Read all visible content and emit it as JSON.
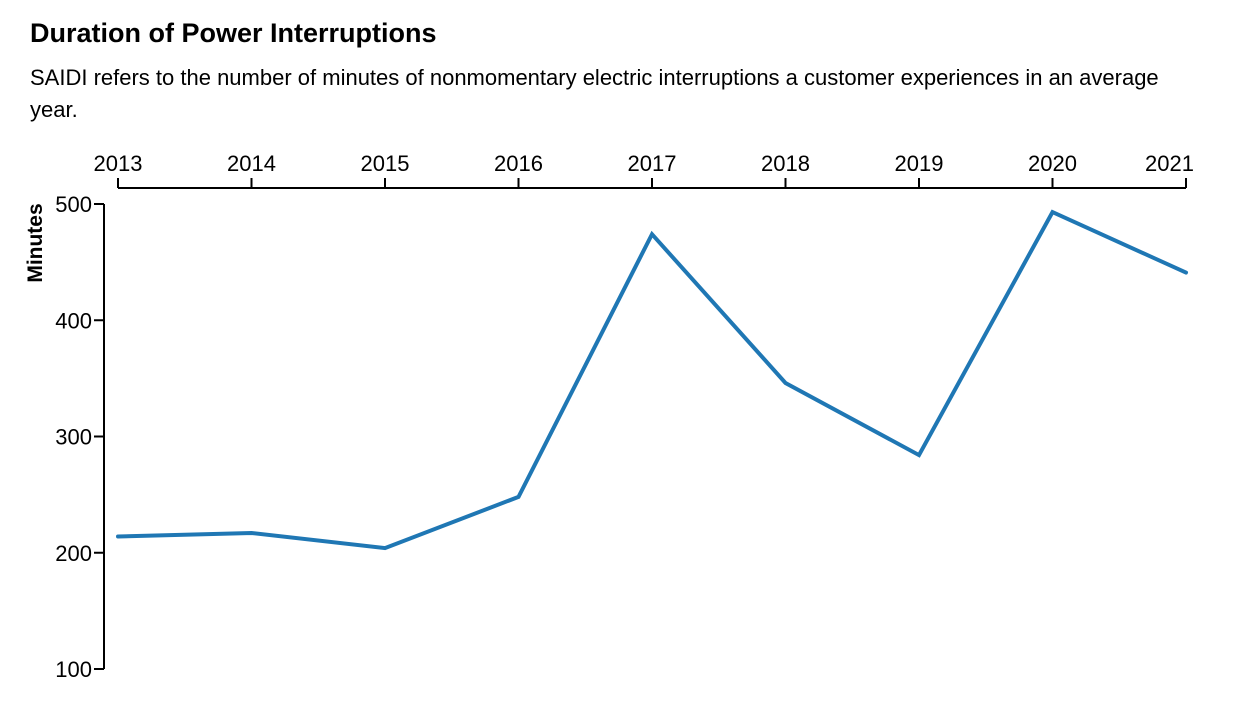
{
  "chart_data": {
    "type": "line",
    "title": "Duration of Power Interruptions",
    "subtitle": "SAIDI refers to the number of minutes of nonmomentary electric interruptions a customer experiences in an average year.",
    "xlabel": "",
    "ylabel": "Minutes",
    "x": [
      "2013",
      "2014",
      "2015",
      "2016",
      "2017",
      "2018",
      "2019",
      "2020",
      "2021"
    ],
    "series": [
      {
        "values": [
          214,
          217,
          204,
          248,
          474,
          346,
          284,
          493,
          441
        ]
      }
    ],
    "xaxis_position": "top",
    "ylim": [
      100,
      500
    ],
    "yticks": [
      "100",
      "200",
      "300",
      "400",
      "500"
    ],
    "grid": false,
    "legend": "none",
    "line_color": "#1f77b4"
  }
}
